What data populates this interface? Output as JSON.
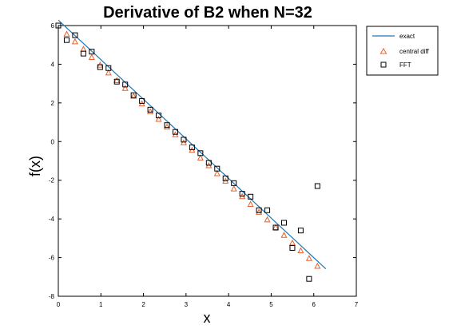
{
  "chart_data": {
    "type": "line",
    "title": "Derivative of B2 when N=32",
    "xlabel": "x",
    "ylabel": "f(x)",
    "xlim": [
      0,
      7
    ],
    "ylim": [
      -8,
      6
    ],
    "xticks": [
      "0",
      "1",
      "2",
      "3",
      "4",
      "5",
      "6",
      "7"
    ],
    "yticks": [
      "6",
      "4",
      "2",
      "0",
      "-2",
      "-4",
      "-6",
      "-8"
    ],
    "grid": false,
    "legend_position": "outside-top-right",
    "series": [
      {
        "name": "exact",
        "style": "line",
        "color": "#1f77b4",
        "x": [
          0,
          6.2832
        ],
        "y": [
          6.2832,
          -6.5832
        ]
      },
      {
        "name": "central diff",
        "style": "triangle",
        "color": "#e8612c",
        "x": [
          0.19635,
          0.3927,
          0.58905,
          0.7854,
          0.98175,
          1.1781,
          1.37445,
          1.5708,
          1.76715,
          1.9635,
          2.15985,
          2.3562,
          2.55255,
          2.7489,
          2.94525,
          3.1416,
          3.33795,
          3.5343,
          3.73065,
          3.927,
          4.12335,
          4.3197,
          4.51605,
          4.7124,
          4.90875,
          5.1051,
          5.30145,
          5.4978,
          5.69415,
          5.8905,
          6.08685
        ],
        "y": [
          5.55,
          5.16,
          4.77,
          4.35,
          3.95,
          3.55,
          3.15,
          2.75,
          2.34,
          1.95,
          1.55,
          1.15,
          0.75,
          0.35,
          -0.06,
          -0.45,
          -0.85,
          -1.25,
          -1.66,
          -2.05,
          -2.45,
          -2.85,
          -3.25,
          -3.66,
          -4.05,
          -4.45,
          -4.85,
          -5.25,
          -5.65,
          -6.05,
          -6.45
        ]
      },
      {
        "name": "FFT",
        "style": "square",
        "color": "#000000",
        "x": [
          0,
          0.19635,
          0.3927,
          0.58905,
          0.7854,
          0.98175,
          1.1781,
          1.37445,
          1.5708,
          1.76715,
          1.9635,
          2.15985,
          2.3562,
          2.55255,
          2.7489,
          2.94525,
          3.1416,
          3.33795,
          3.5343,
          3.73065,
          3.927,
          4.12335,
          4.3197,
          4.51605,
          4.7124,
          4.90875,
          5.1051,
          5.30145,
          5.4978,
          5.69415,
          5.8905,
          6.08685
        ],
        "y": [
          6.0,
          5.25,
          5.5,
          4.55,
          4.65,
          3.85,
          3.8,
          3.1,
          2.95,
          2.4,
          2.1,
          1.65,
          1.35,
          0.85,
          0.5,
          0.1,
          -0.3,
          -0.6,
          -1.1,
          -1.4,
          -1.9,
          -2.15,
          -2.7,
          -2.85,
          -3.55,
          -3.55,
          -4.45,
          -4.2,
          -5.5,
          -4.6,
          -7.1,
          -2.3
        ]
      }
    ]
  },
  "colors": {
    "exact": "#1f77b4",
    "central_diff": "#e8612c",
    "fft": "#000000"
  }
}
